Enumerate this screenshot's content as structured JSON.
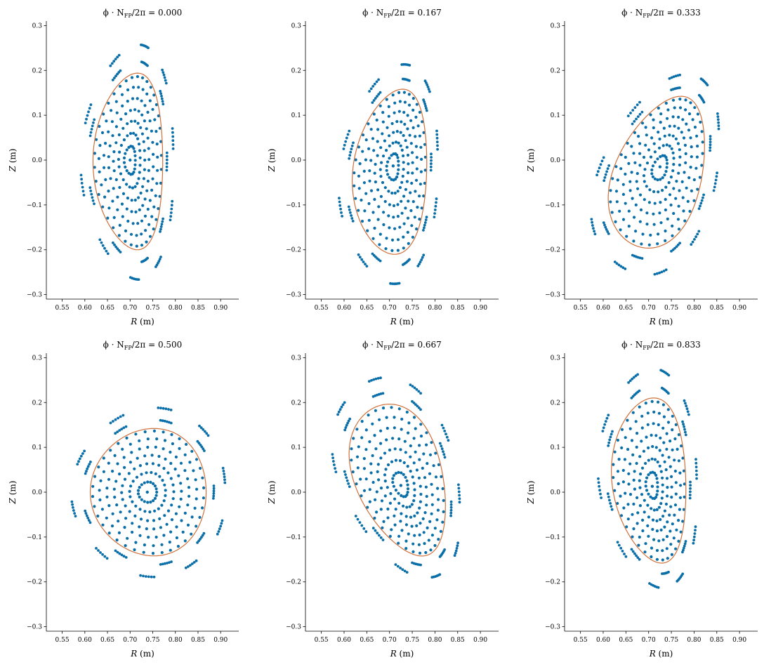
{
  "figure": {
    "colors": {
      "poincare_points": "#0a6fa8",
      "boundary": "#d0703a",
      "axes": "#000000"
    },
    "grid": false,
    "layout": "2x3 subplots"
  },
  "chart_data": [
    {
      "type": "scatter",
      "title": "ϕ · N_FP/2π = 0.000",
      "title_parts": {
        "prefix": "ϕ · N",
        "sub": "FP",
        "suffix": "/2π = 0.000"
      },
      "xlabel_var": "R",
      "xlabel_unit": "(m)",
      "ylabel_var": "Z",
      "ylabel_unit": "(m)",
      "xlim": [
        0.515,
        0.94
      ],
      "ylim": [
        -0.31,
        0.31
      ],
      "xticks": [
        0.55,
        0.6,
        0.65,
        0.7,
        0.75,
        0.8,
        0.85,
        0.9
      ],
      "yticks": [
        -0.3,
        -0.2,
        -0.1,
        0.0,
        0.1,
        0.2,
        0.3
      ],
      "axis": {
        "R": 0.7,
        "Z": 0.0
      },
      "boundary": {
        "R0": 0.695,
        "a": 0.077,
        "Z0": -0.003,
        "b": 0.197,
        "tilt": 0.0,
        "tri": -0.28
      },
      "points": {
        "rings": [
          0.16,
          0.31,
          0.45,
          0.58,
          0.71,
          0.84,
          0.96
        ],
        "outer_rings": [
          1.13,
          1.32
        ],
        "points_per_ring": 34
      }
    },
    {
      "type": "scatter",
      "title": "ϕ · N_FP/2π = 0.167",
      "title_parts": {
        "prefix": "ϕ · N",
        "sub": "FP",
        "suffix": "/2π = 0.167"
      },
      "xlabel_var": "R",
      "xlabel_unit": "(m)",
      "ylabel_var": "Z",
      "ylabel_unit": "(m)",
      "xlim": [
        0.515,
        0.94
      ],
      "ylim": [
        -0.31,
        0.31
      ],
      "xticks": [
        0.55,
        0.6,
        0.65,
        0.7,
        0.75,
        0.8,
        0.85,
        0.9
      ],
      "yticks": [
        -0.3,
        -0.2,
        -0.1,
        0.0,
        0.1,
        0.2,
        0.3
      ],
      "axis": {
        "R": 0.708,
        "Z": -0.013
      },
      "boundary": {
        "R0": 0.7,
        "a": 0.082,
        "Z0": -0.026,
        "b": 0.183,
        "tilt": 0.25,
        "tri": -0.25
      },
      "points": {
        "rings": [
          0.16,
          0.31,
          0.45,
          0.58,
          0.71,
          0.84,
          0.96
        ],
        "outer_rings": [
          1.13,
          1.32
        ],
        "points_per_ring": 34
      }
    },
    {
      "type": "scatter",
      "title": "ϕ · N_FP/2π = 0.333",
      "title_parts": {
        "prefix": "ϕ · N",
        "sub": "FP",
        "suffix": "/2π = 0.333"
      },
      "xlabel_var": "R",
      "xlabel_unit": "(m)",
      "ylabel_var": "Z",
      "ylabel_unit": "(m)",
      "xlim": [
        0.515,
        0.94
      ],
      "ylim": [
        -0.31,
        0.31
      ],
      "xticks": [
        0.55,
        0.6,
        0.65,
        0.7,
        0.75,
        0.8,
        0.85,
        0.9
      ],
      "yticks": [
        -0.3,
        -0.2,
        -0.1,
        0.0,
        0.1,
        0.2,
        0.3
      ],
      "axis": {
        "R": 0.725,
        "Z": -0.015
      },
      "boundary": {
        "R0": 0.717,
        "a": 0.106,
        "Z0": -0.027,
        "b": 0.159,
        "tilt": 0.55,
        "tri": -0.2
      },
      "points": {
        "rings": [
          0.16,
          0.31,
          0.45,
          0.58,
          0.71,
          0.84,
          0.96
        ],
        "outer_rings": [
          1.13,
          1.32
        ],
        "points_per_ring": 34
      }
    },
    {
      "type": "scatter",
      "title": "ϕ · N_FP/2π = 0.500",
      "title_parts": {
        "prefix": "ϕ · N",
        "sub": "FP",
        "suffix": "/2π = 0.500"
      },
      "xlabel_var": "R",
      "xlabel_unit": "(m)",
      "ylabel_var": "Z",
      "ylabel_unit": "(m)",
      "xlim": [
        0.515,
        0.94
      ],
      "ylim": [
        -0.31,
        0.31
      ],
      "xticks": [
        0.55,
        0.6,
        0.65,
        0.7,
        0.75,
        0.8,
        0.85,
        0.9
      ],
      "yticks": [
        -0.3,
        -0.2,
        -0.1,
        0.0,
        0.1,
        0.2,
        0.3
      ],
      "axis": {
        "R": 0.738,
        "Z": 0.0
      },
      "boundary": {
        "R0": 0.74,
        "a": 0.128,
        "Z0": 0.0,
        "b": 0.142,
        "tilt": 0.0,
        "tri": -0.1
      },
      "points": {
        "rings": [
          0.16,
          0.31,
          0.45,
          0.58,
          0.71,
          0.84,
          0.96
        ],
        "outer_rings": [
          1.13,
          1.32
        ],
        "points_per_ring": 34
      }
    },
    {
      "type": "scatter",
      "title": "ϕ · N_FP/2π = 0.667",
      "title_parts": {
        "prefix": "ϕ · N",
        "sub": "FP",
        "suffix": "/2π = 0.667"
      },
      "xlabel_var": "R",
      "xlabel_unit": "(m)",
      "ylabel_var": "Z",
      "ylabel_unit": "(m)",
      "xlim": [
        0.515,
        0.94
      ],
      "ylim": [
        -0.31,
        0.31
      ],
      "xticks": [
        0.55,
        0.6,
        0.65,
        0.7,
        0.75,
        0.8,
        0.85,
        0.9
      ],
      "yticks": [
        -0.3,
        -0.2,
        -0.1,
        0.0,
        0.1,
        0.2,
        0.3
      ],
      "axis": {
        "R": 0.725,
        "Z": 0.015
      },
      "boundary": {
        "R0": 0.717,
        "a": 0.106,
        "Z0": 0.027,
        "b": 0.159,
        "tilt": -0.55,
        "tri": -0.2
      },
      "points": {
        "rings": [
          0.16,
          0.31,
          0.45,
          0.58,
          0.71,
          0.84,
          0.96
        ],
        "outer_rings": [
          1.13,
          1.32
        ],
        "points_per_ring": 34
      }
    },
    {
      "type": "scatter",
      "title": "ϕ · N_FP/2π = 0.833",
      "title_parts": {
        "prefix": "ϕ · N",
        "sub": "FP",
        "suffix": "/2π = 0.833"
      },
      "xlabel_var": "R",
      "xlabel_unit": "(m)",
      "ylabel_var": "Z",
      "ylabel_unit": "(m)",
      "xlim": [
        0.515,
        0.94
      ],
      "ylim": [
        -0.31,
        0.31
      ],
      "xticks": [
        0.55,
        0.6,
        0.65,
        0.7,
        0.75,
        0.8,
        0.85,
        0.9
      ],
      "yticks": [
        -0.3,
        -0.2,
        -0.1,
        0.0,
        0.1,
        0.2,
        0.3
      ],
      "axis": {
        "R": 0.708,
        "Z": 0.013
      },
      "boundary": {
        "R0": 0.7,
        "a": 0.082,
        "Z0": 0.026,
        "b": 0.183,
        "tilt": -0.25,
        "tri": -0.25
      },
      "points": {
        "rings": [
          0.16,
          0.31,
          0.45,
          0.58,
          0.71,
          0.84,
          0.96
        ],
        "outer_rings": [
          1.13,
          1.32
        ],
        "points_per_ring": 34
      }
    }
  ]
}
